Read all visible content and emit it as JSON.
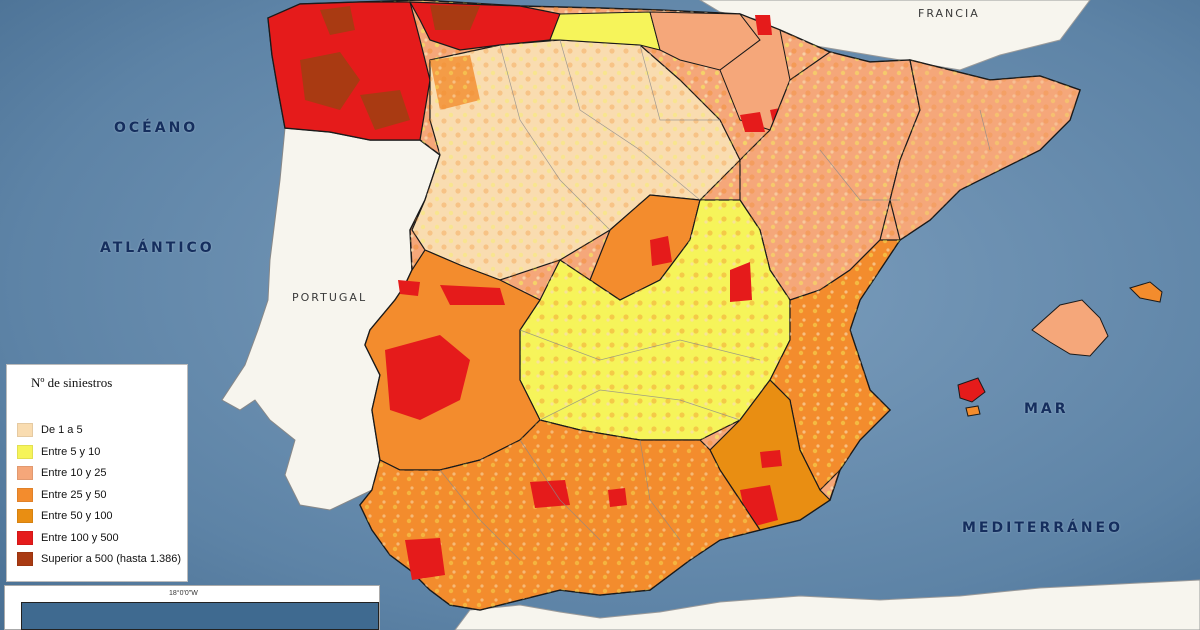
{
  "labels": {
    "ocean": "OCÉANO",
    "atlantic": "ATLÁNTICO",
    "sea": "MAR",
    "mediterranean": "MEDITERRÁNEO",
    "france": "FRANCIA",
    "portugal": "PORTUGAL"
  },
  "legend": {
    "title": "Nº de siniestros",
    "items": [
      {
        "label": "De 1 a 5",
        "color": "#f9dcb0"
      },
      {
        "label": "Entre 5 y 10",
        "color": "#f6f45a"
      },
      {
        "label": "Entre 10 y 25",
        "color": "#f5a77a"
      },
      {
        "label": "Entre 25 y 50",
        "color": "#f38c2d"
      },
      {
        "label": "Entre 50 y 100",
        "color": "#e98e12"
      },
      {
        "label": "Entre 100 y 500",
        "color": "#e51b1b"
      },
      {
        "label": "Superior a 500 (hasta 1.386)",
        "color": "#a93a12"
      }
    ]
  },
  "inset": {
    "coordinate": "18°0'0\"W"
  },
  "colors": {
    "sea": "#5e84a6",
    "neighbor_land": "#f7f5ee",
    "region_border": "#1a1a1a"
  }
}
